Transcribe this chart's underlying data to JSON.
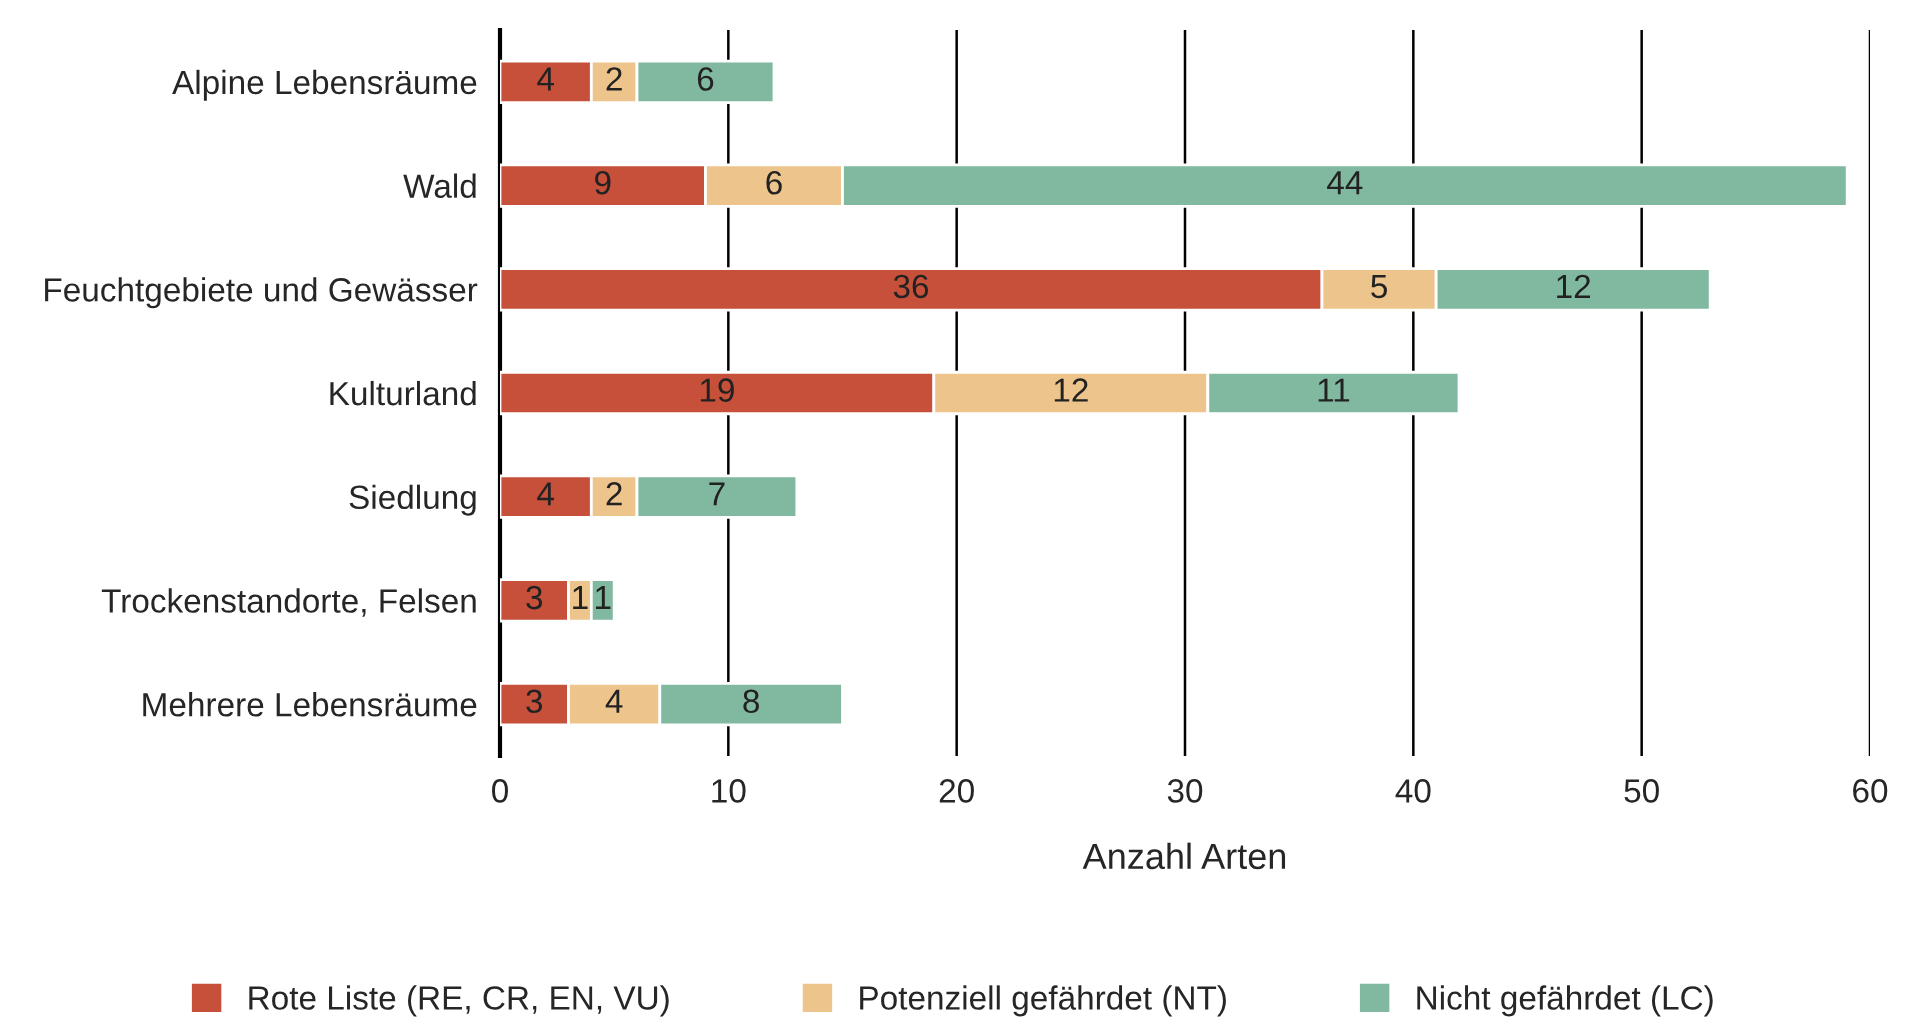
{
  "chart_data": {
    "type": "bar",
    "orientation": "horizontal",
    "stacked": true,
    "data_labels": true,
    "categories": [
      "Alpine Lebensräume",
      "Wald",
      "Feuchtgebiete und Gewässer",
      "Kulturland",
      "Siedlung",
      "Trockenstandorte, Felsen",
      "Mehrere Lebensräume"
    ],
    "series": [
      {
        "name": "Rote Liste (RE, CR, EN, VU)",
        "color": "#c6503a",
        "values": [
          4,
          9,
          36,
          19,
          4,
          3,
          3
        ]
      },
      {
        "name": "Potenziell gefährdet (NT)",
        "color": "#edc48b",
        "values": [
          2,
          6,
          5,
          12,
          2,
          1,
          4
        ]
      },
      {
        "name": "Nicht gefährdet (LC)",
        "color": "#80b9a0",
        "values": [
          6,
          44,
          12,
          11,
          7,
          1,
          8
        ]
      }
    ],
    "xlabel": "Anzahl Arten",
    "xlim": [
      0,
      60
    ],
    "xticks": [
      0,
      10,
      20,
      30,
      40,
      50,
      60
    ],
    "grid": "x",
    "legend": "bottom"
  }
}
